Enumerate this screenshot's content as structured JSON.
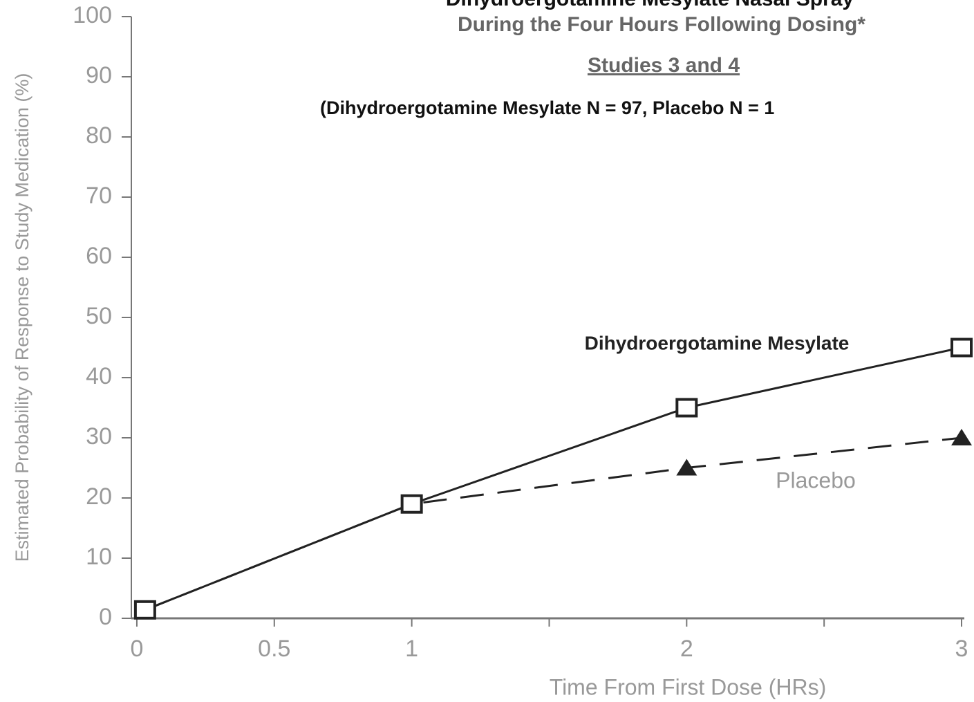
{
  "chart_data": {
    "type": "line",
    "title": [
      "Dihydroergotamine Mesylate Nasal Spray",
      "During the Four Hours Following Dosing*",
      "Studies 3 and 4"
    ],
    "subtitle": "(Dihydroergotamine Mesylate N = 97, Placebo N = 1",
    "x_label": "Time From First Dose (HRs)",
    "y_label": "Estimated Probability of Response to Study Medication (%)",
    "x": [
      0.03,
      1,
      2,
      3
    ],
    "series": [
      {
        "name": "Dihydroergotamine Mesylate",
        "color": "#222222",
        "dash": "solid",
        "marker": "open-square",
        "values": [
          1.4,
          19,
          35,
          45
        ]
      },
      {
        "name": "Placebo",
        "color": "#222222",
        "dash": "dashed",
        "marker": "filled-triangle",
        "values": [
          1.4,
          19,
          25,
          30
        ]
      }
    ],
    "xlim": [
      -0.02,
      3.01
    ],
    "xticks": [
      0,
      0.5,
      1,
      2,
      3
    ],
    "xminor_ticks": [
      1.5,
      2.5
    ],
    "ylim": [
      0,
      100
    ],
    "yticks": [
      0,
      10,
      20,
      30,
      40,
      50,
      60,
      70,
      80,
      90,
      100
    ],
    "grid": false
  }
}
